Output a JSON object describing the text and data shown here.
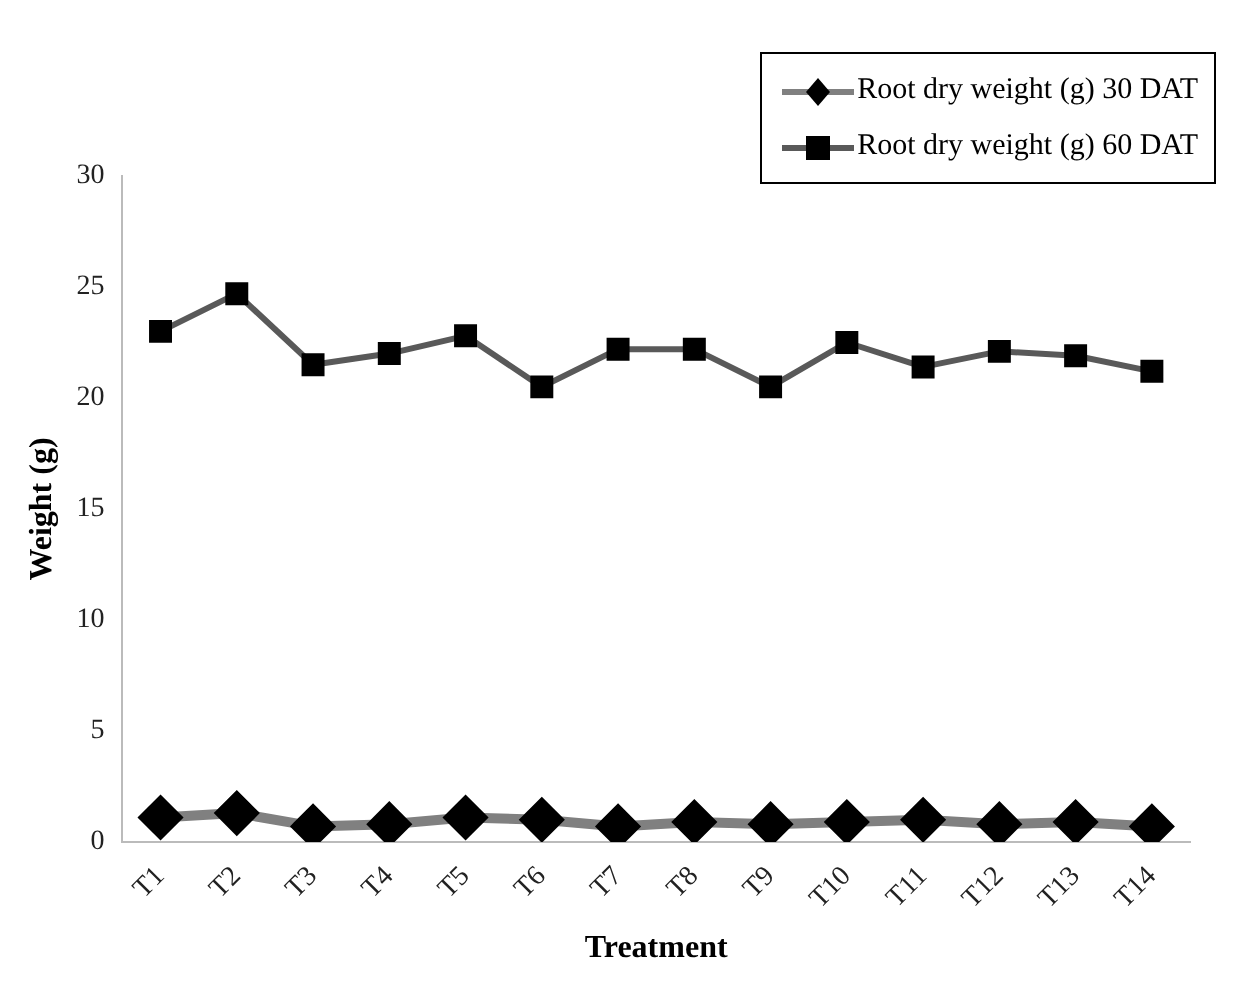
{
  "chart_data": {
    "type": "line",
    "xlabel": "Treatment",
    "ylabel": "Weight (g)",
    "categories": [
      "T1",
      "T2",
      "T3",
      "T4",
      "T5",
      "T6",
      "T7",
      "T8",
      "T9",
      "T10",
      "T11",
      "T12",
      "T13",
      "T14"
    ],
    "series": [
      {
        "name": "Root dry weight (g) 30 DAT",
        "color": "#808080",
        "marker": "diamond",
        "values": [
          1.1,
          1.3,
          0.7,
          0.8,
          1.1,
          1.0,
          0.7,
          0.9,
          0.8,
          0.9,
          1.0,
          0.8,
          0.9,
          0.7
        ]
      },
      {
        "name": "Root dry weight (g) 60 DAT",
        "color": "#595959",
        "marker": "square",
        "values": [
          23.0,
          24.7,
          21.5,
          22.0,
          22.8,
          20.5,
          22.2,
          22.2,
          20.5,
          22.5,
          21.4,
          22.1,
          21.9,
          21.2
        ]
      }
    ],
    "ylim": [
      0,
      30
    ],
    "yticks": [
      0,
      5,
      10,
      15,
      20,
      25,
      30
    ],
    "grid": false,
    "legend": "top right"
  }
}
